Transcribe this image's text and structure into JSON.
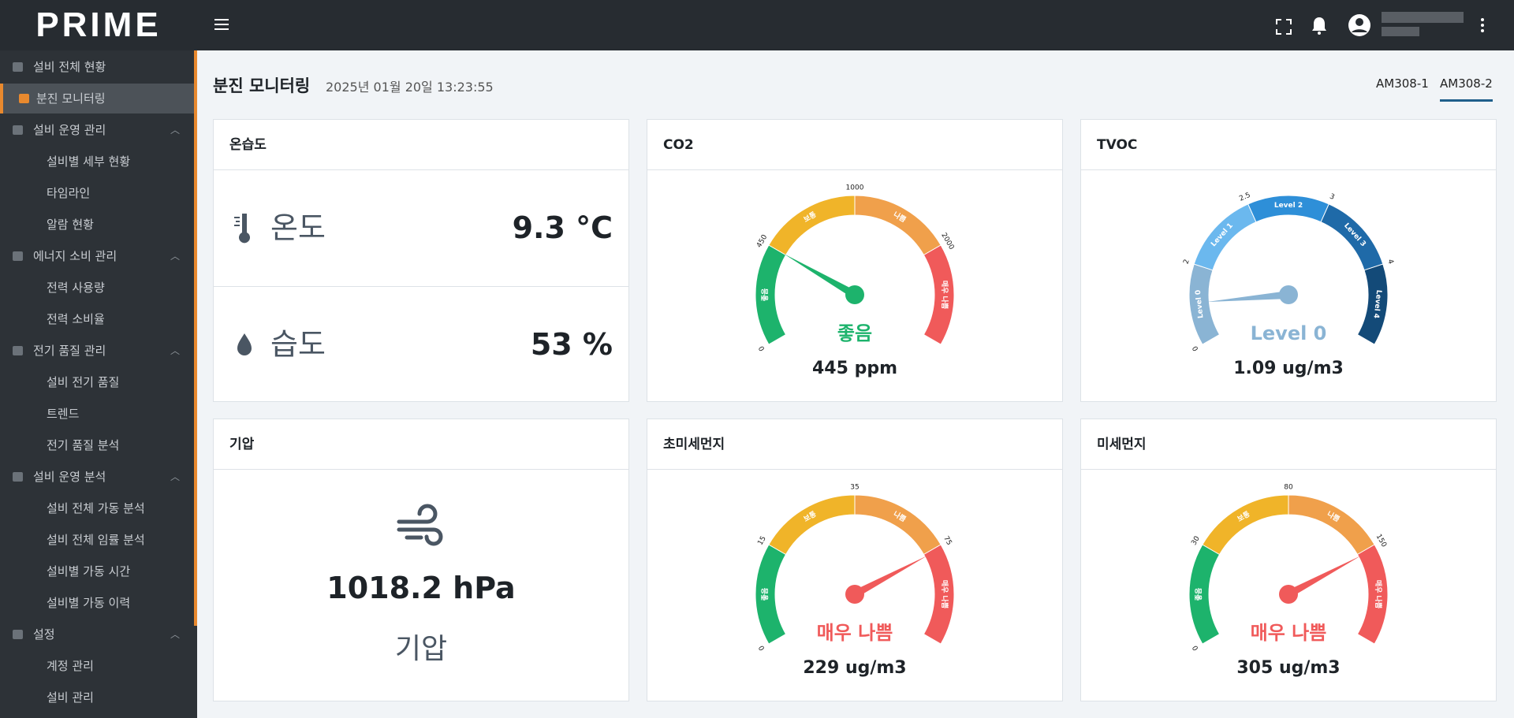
{
  "topbar": {
    "logo": "PRIME"
  },
  "sidebar": {
    "items": [
      {
        "label": "설비 전체 현황"
      },
      {
        "label": "분진 모니터링",
        "active": true
      },
      {
        "label": "설비 운영 관리",
        "children": [
          "설비별 세부 현황",
          "타임라인",
          "알람 현황"
        ]
      },
      {
        "label": "에너지 소비 관리",
        "children": [
          "전력 사용량",
          "전력 소비율"
        ]
      },
      {
        "label": "전기 품질 관리",
        "children": [
          "설비 전기 품질",
          "트렌드",
          "전기 품질 분석"
        ]
      },
      {
        "label": "설비 운영 분석",
        "children": [
          "설비 전체 가동 분석",
          "설비 전체 임률 분석",
          "설비별 가동 시간",
          "설비별 가동 이력"
        ]
      },
      {
        "label": "설정",
        "children": [
          "계정 관리",
          "설비 관리"
        ]
      }
    ]
  },
  "header": {
    "title": "분진 모니터링",
    "timestamp": "2025년 01월 20일 13:23:55",
    "tabs": [
      "AM308-1",
      "AM308-2"
    ],
    "active_tab": 1
  },
  "cards": [
    {
      "title": "온습도",
      "rows": [
        {
          "label": "온도",
          "value": "9.3 °C"
        },
        {
          "label": "습도",
          "value": "53 %"
        }
      ]
    },
    {
      "title": "CO2",
      "gauge": {
        "ticks": [
          0,
          450,
          1000,
          2000
        ],
        "segments": [
          "좋음",
          "보통",
          "나쁨",
          "매우 나쁨"
        ]
      },
      "status": "좋음",
      "value": "445 ppm"
    },
    {
      "title": "TVOC",
      "gauge": {
        "ticks": [
          0,
          2,
          2.5,
          3,
          4
        ],
        "segments": [
          "Level 0",
          "Level 1",
          "Level 2",
          "Level 3",
          "Level 4"
        ]
      },
      "status": "Level 0",
      "value": "1.09 ug/m3"
    },
    {
      "title": "기압",
      "value": "1018.2 hPa",
      "label": "기압"
    },
    {
      "title": "초미세먼지",
      "gauge": {
        "ticks": [
          0,
          15,
          35,
          75
        ],
        "segments": [
          "좋음",
          "보통",
          "나쁨",
          "매우 나쁨"
        ]
      },
      "status": "매우 나쁨",
      "value": "229 ug/m3"
    },
    {
      "title": "미세먼지",
      "gauge": {
        "ticks": [
          0,
          30,
          80,
          150
        ],
        "segments": [
          "좋음",
          "보통",
          "나쁨",
          "매우 나쁨"
        ]
      },
      "status": "매우 나쁨",
      "value": "305 ug/m3"
    }
  ]
}
